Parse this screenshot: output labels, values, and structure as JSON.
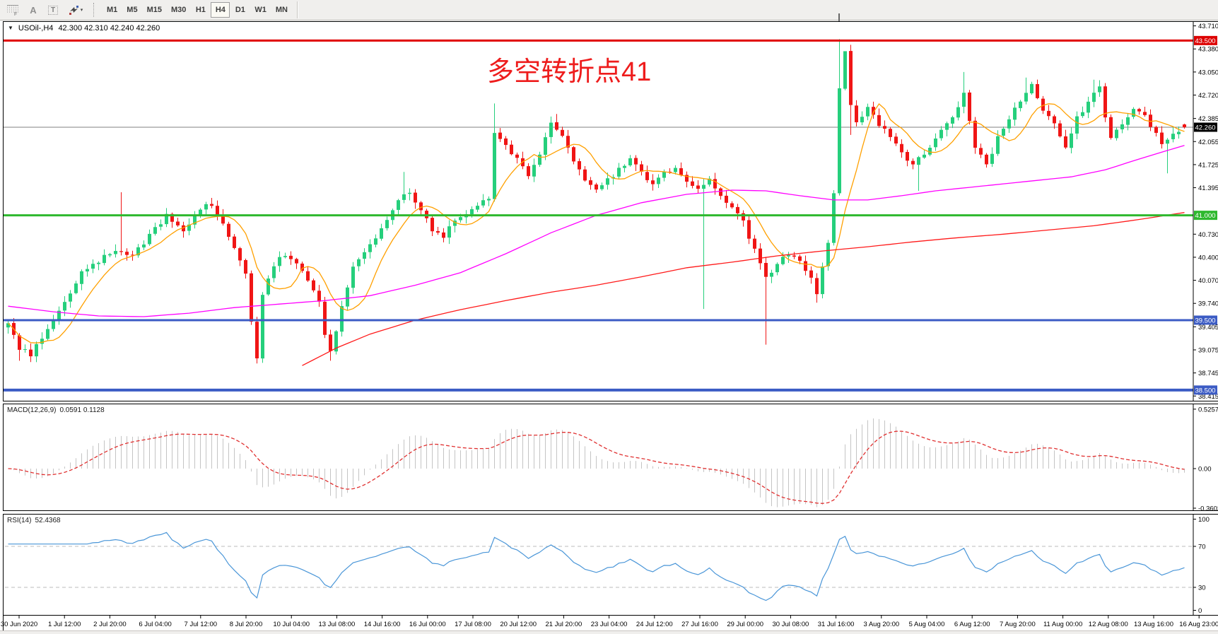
{
  "toolbar": {
    "tools": {
      "fibo_label": "F",
      "text_label": "A",
      "textbox_label": "T"
    },
    "timeframes": [
      "M1",
      "M5",
      "M15",
      "M30",
      "H1",
      "H4",
      "D1",
      "W1",
      "MN"
    ],
    "active_timeframe": "H4"
  },
  "chart": {
    "title_symbol": "USOil-,H4",
    "title_ohlc": "42.300 42.310 42.240 42.260",
    "annotation": {
      "text": "多空转折点41",
      "color": "#ee1c1c"
    }
  },
  "chart_data": {
    "type": "candlestick",
    "symbol": "USOil-",
    "timeframe": "H4",
    "ohlc_current": {
      "open": 42.3,
      "high": 42.31,
      "low": 42.24,
      "close": 42.26
    },
    "colors": {
      "up": "#25cf7c",
      "down": "#f01515",
      "current_line": "#808080"
    },
    "price_axis_ticks": [
      {
        "label": "43.710",
        "price": 43.71
      },
      {
        "label": "43.380",
        "price": 43.38
      },
      {
        "label": "43.050",
        "price": 43.05
      },
      {
        "label": "42.720",
        "price": 42.72
      },
      {
        "label": "42.385",
        "price": 42.385
      },
      {
        "label": "42.055",
        "price": 42.055
      },
      {
        "label": "41.725",
        "price": 41.725
      },
      {
        "label": "41.395",
        "price": 41.395
      },
      {
        "label": "40.730",
        "price": 40.73
      },
      {
        "label": "40.400",
        "price": 40.4
      },
      {
        "label": "40.070",
        "price": 40.07
      },
      {
        "label": "39.740",
        "price": 39.74
      },
      {
        "label": "39.405",
        "price": 39.405
      },
      {
        "label": "39.075",
        "price": 39.075
      },
      {
        "label": "38.745",
        "price": 38.745
      },
      {
        "label": "38.415",
        "price": 38.415
      }
    ],
    "price_badges": [
      {
        "label": "43.500",
        "price": 43.5,
        "color": "#dd0000"
      },
      {
        "label": "42.260",
        "price": 42.26,
        "color": "#000000"
      },
      {
        "label": "41.000",
        "price": 41.0,
        "color": "#2eb82e"
      },
      {
        "label": "39.500",
        "price": 39.5,
        "color": "#3b5bc4"
      },
      {
        "label": "38.500",
        "price": 38.5,
        "color": "#3b5bc4"
      }
    ],
    "horizontal_lines": [
      {
        "price": 42.26,
        "color": "#808080",
        "width": 1
      },
      {
        "price": 43.5,
        "color": "#e00000",
        "width": 3
      },
      {
        "price": 41.0,
        "color": "#2eb82e",
        "width": 3
      },
      {
        "price": 39.5,
        "color": "#3b5bc4",
        "width": 3
      },
      {
        "price": 38.5,
        "color": "#3b5bc4",
        "width": 4
      }
    ],
    "time_labels": [
      "30 Jun 2020",
      "1 Jul 12:00",
      "2 Jul 20:00",
      "6 Jul 04:00",
      "7 Jul 12:00",
      "8 Jul 20:00",
      "10 Jul 04:00",
      "13 Jul 08:00",
      "14 Jul 16:00",
      "16 Jul 00:00",
      "17 Jul 08:00",
      "20 Jul 12:00",
      "21 Jul 20:00",
      "23 Jul 04:00",
      "24 Jul 12:00",
      "27 Jul 16:00",
      "29 Jul 00:00",
      "30 Jul 08:00",
      "31 Jul 16:00",
      "3 Aug 20:00",
      "5 Aug 04:00",
      "6 Aug 12:00",
      "7 Aug 20:00",
      "11 Aug 00:00",
      "12 Aug 08:00",
      "13 Aug 16:00",
      "16 Aug 23:00"
    ],
    "bars_total": 209,
    "close_path": [
      [
        0,
        39.45
      ],
      [
        2,
        39.1
      ],
      [
        4,
        39.0
      ],
      [
        7,
        39.4
      ],
      [
        10,
        39.75
      ],
      [
        13,
        40.2
      ],
      [
        16,
        40.35
      ],
      [
        19,
        40.5
      ],
      [
        22,
        40.45
      ],
      [
        25,
        40.7
      ],
      [
        28,
        41.0
      ],
      [
        31,
        40.8
      ],
      [
        34,
        41.1
      ],
      [
        36,
        41.15
      ],
      [
        38,
        40.9
      ],
      [
        40,
        40.55
      ],
      [
        42,
        40.2
      ],
      [
        43,
        39.5
      ],
      [
        44,
        38.95
      ],
      [
        45,
        39.85
      ],
      [
        47,
        40.3
      ],
      [
        49,
        40.45
      ],
      [
        51,
        40.3
      ],
      [
        53,
        40.1
      ],
      [
        55,
        39.8
      ],
      [
        56,
        39.3
      ],
      [
        57,
        39.05
      ],
      [
        59,
        39.7
      ],
      [
        61,
        40.25
      ],
      [
        63,
        40.5
      ],
      [
        65,
        40.7
      ],
      [
        67,
        40.95
      ],
      [
        69,
        41.2
      ],
      [
        71,
        41.35
      ],
      [
        73,
        41.05
      ],
      [
        75,
        40.8
      ],
      [
        77,
        40.7
      ],
      [
        79,
        40.95
      ],
      [
        81,
        41.05
      ],
      [
        83,
        41.15
      ],
      [
        85,
        41.25
      ],
      [
        86,
        42.2
      ],
      [
        88,
        42.0
      ],
      [
        90,
        41.8
      ],
      [
        92,
        41.55
      ],
      [
        94,
        41.9
      ],
      [
        96,
        42.3
      ],
      [
        98,
        42.15
      ],
      [
        100,
        41.75
      ],
      [
        102,
        41.5
      ],
      [
        104,
        41.35
      ],
      [
        106,
        41.5
      ],
      [
        108,
        41.65
      ],
      [
        110,
        41.8
      ],
      [
        112,
        41.6
      ],
      [
        114,
        41.45
      ],
      [
        116,
        41.6
      ],
      [
        118,
        41.7
      ],
      [
        120,
        41.5
      ],
      [
        122,
        41.35
      ],
      [
        124,
        41.5
      ],
      [
        126,
        41.3
      ],
      [
        128,
        41.1
      ],
      [
        130,
        40.9
      ],
      [
        132,
        40.5
      ],
      [
        134,
        40.1
      ],
      [
        136,
        40.3
      ],
      [
        138,
        40.45
      ],
      [
        140,
        40.35
      ],
      [
        142,
        40.1
      ],
      [
        143,
        39.9
      ],
      [
        145,
        40.6
      ],
      [
        146,
        41.3
      ],
      [
        147,
        42.8
      ],
      [
        148,
        43.35
      ],
      [
        149,
        42.6
      ],
      [
        150,
        42.3
      ],
      [
        152,
        42.55
      ],
      [
        154,
        42.3
      ],
      [
        156,
        42.15
      ],
      [
        158,
        41.9
      ],
      [
        160,
        41.7
      ],
      [
        162,
        41.9
      ],
      [
        164,
        42.1
      ],
      [
        166,
        42.3
      ],
      [
        168,
        42.55
      ],
      [
        169,
        42.75
      ],
      [
        171,
        42.0
      ],
      [
        173,
        41.7
      ],
      [
        175,
        42.1
      ],
      [
        177,
        42.4
      ],
      [
        179,
        42.65
      ],
      [
        181,
        42.85
      ],
      [
        183,
        42.5
      ],
      [
        185,
        42.3
      ],
      [
        187,
        42.0
      ],
      [
        189,
        42.4
      ],
      [
        191,
        42.6
      ],
      [
        193,
        42.85
      ],
      [
        194,
        42.4
      ],
      [
        195,
        42.1
      ],
      [
        197,
        42.3
      ],
      [
        199,
        42.55
      ],
      [
        201,
        42.4
      ],
      [
        203,
        42.15
      ],
      [
        204,
        42.0
      ],
      [
        205,
        42.05
      ],
      [
        206,
        42.18
      ],
      [
        207,
        42.21
      ],
      [
        208,
        42.26
      ]
    ],
    "spikes": [
      {
        "bar": 2,
        "low": 38.92
      },
      {
        "bar": 20,
        "high": 41.33
      },
      {
        "bar": 44,
        "low": 38.88
      },
      {
        "bar": 57,
        "low": 38.92
      },
      {
        "bar": 70,
        "high": 41.62
      },
      {
        "bar": 86,
        "high": 42.6
      },
      {
        "bar": 97,
        "high": 42.45
      },
      {
        "bar": 123,
        "low": 39.66
      },
      {
        "bar": 134,
        "low": 39.15
      },
      {
        "bar": 143,
        "low": 39.75
      },
      {
        "bar": 147,
        "high": 43.52
      },
      {
        "bar": 148,
        "high": 43.3
      },
      {
        "bar": 149,
        "low": 42.15
      },
      {
        "bar": 161,
        "low": 41.35
      },
      {
        "bar": 169,
        "high": 43.05
      },
      {
        "bar": 180,
        "high": 42.97
      },
      {
        "bar": 192,
        "high": 42.94
      },
      {
        "bar": 205,
        "low": 41.6
      }
    ],
    "ma_lines": [
      {
        "name": "ma-fast",
        "color": "#ffa000",
        "type": "sma",
        "period": 8
      },
      {
        "name": "ma-mid",
        "color": "#ff00ff",
        "type": "path",
        "path": [
          [
            0,
            39.7
          ],
          [
            8,
            39.62
          ],
          [
            16,
            39.56
          ],
          [
            24,
            39.55
          ],
          [
            32,
            39.6
          ],
          [
            40,
            39.68
          ],
          [
            48,
            39.73
          ],
          [
            56,
            39.78
          ],
          [
            64,
            39.85
          ],
          [
            72,
            40.0
          ],
          [
            80,
            40.18
          ],
          [
            88,
            40.45
          ],
          [
            96,
            40.75
          ],
          [
            104,
            41.0
          ],
          [
            112,
            41.18
          ],
          [
            120,
            41.3
          ],
          [
            128,
            41.36
          ],
          [
            134,
            41.35
          ],
          [
            140,
            41.28
          ],
          [
            146,
            41.22
          ],
          [
            152,
            41.22
          ],
          [
            158,
            41.28
          ],
          [
            164,
            41.35
          ],
          [
            170,
            41.4
          ],
          [
            176,
            41.45
          ],
          [
            182,
            41.5
          ],
          [
            188,
            41.55
          ],
          [
            194,
            41.65
          ],
          [
            199,
            41.78
          ],
          [
            203,
            41.88
          ],
          [
            208,
            42.0
          ]
        ]
      },
      {
        "name": "ma-slow",
        "color": "#ff1a1a",
        "type": "path",
        "path": [
          [
            52,
            38.85
          ],
          [
            58,
            39.1
          ],
          [
            64,
            39.3
          ],
          [
            72,
            39.5
          ],
          [
            80,
            39.65
          ],
          [
            88,
            39.78
          ],
          [
            96,
            39.9
          ],
          [
            104,
            40.0
          ],
          [
            112,
            40.12
          ],
          [
            120,
            40.25
          ],
          [
            128,
            40.33
          ],
          [
            136,
            40.42
          ],
          [
            144,
            40.49
          ],
          [
            152,
            40.55
          ],
          [
            160,
            40.62
          ],
          [
            168,
            40.68
          ],
          [
            176,
            40.73
          ],
          [
            184,
            40.79
          ],
          [
            192,
            40.85
          ],
          [
            200,
            40.94
          ],
          [
            208,
            41.04
          ]
        ]
      }
    ],
    "indicators": [
      {
        "name": "MACD",
        "label": "MACD(12,26,9)",
        "values_text": "0.0591 0.1128",
        "axis": [
          {
            "label": "0.5257",
            "value": 0.5257
          },
          {
            "label": "0.00",
            "value": 0.0
          },
          {
            "label": "-0.3603",
            "value": -0.3603
          }
        ],
        "fast": 12,
        "slow": 26,
        "signal": 9,
        "histogram_color": "#c4c4c4",
        "signal_color": "#e03030"
      },
      {
        "name": "RSI",
        "label": "RSI(14)",
        "values_text": "52.4368",
        "period": 14,
        "axis": [
          {
            "label": "100",
            "value": 100
          },
          {
            "label": "70",
            "value": 70
          },
          {
            "label": "30",
            "value": 30
          },
          {
            "label": "0",
            "value": 0
          }
        ],
        "levels": [
          70,
          30
        ],
        "line_color": "#4a96d8",
        "level_color": "#bbbbbb"
      }
    ]
  }
}
